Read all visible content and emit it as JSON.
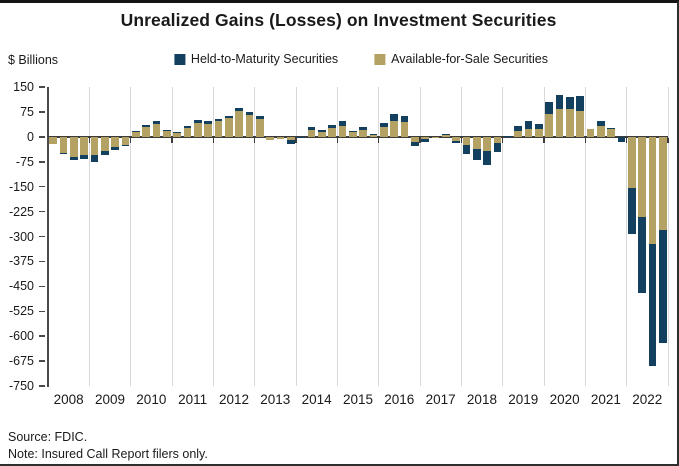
{
  "title": "Unrealized Gains (Losses) on Investment Securities",
  "ylabel": "$ Billions",
  "legend": [
    {
      "label": "Held-to-Maturity Securities",
      "color": "#14405f"
    },
    {
      "label": "Available-for-Sale Securities",
      "color": "#b3a264"
    }
  ],
  "source_line": "Source: FDIC.",
  "note_line": "Note: Insured Call Report filers only.",
  "chart_data": {
    "type": "bar",
    "stacked": true,
    "title": "Unrealized Gains (Losses) on Investment Securities",
    "ylabel": "$ Billions",
    "ylim": [
      -750,
      150
    ],
    "ytick_step": 75,
    "ytick_labels": [
      "150",
      "75",
      "0",
      "-75",
      "-150",
      "-225",
      "-300",
      "-375",
      "-450",
      "-525",
      "-600",
      "-675",
      "-750"
    ],
    "grid": "vertical-year-boundaries",
    "legend_position": "top-center",
    "year_labels": [
      "2008",
      "2009",
      "2010",
      "2011",
      "2012",
      "2013",
      "2014",
      "2015",
      "2016",
      "2017",
      "2018",
      "2019",
      "2020",
      "2021",
      "2022"
    ],
    "categories": [
      "2008 Q1",
      "2008 Q2",
      "2008 Q3",
      "2008 Q4",
      "2009 Q1",
      "2009 Q2",
      "2009 Q3",
      "2009 Q4",
      "2010 Q1",
      "2010 Q2",
      "2010 Q3",
      "2010 Q4",
      "2011 Q1",
      "2011 Q2",
      "2011 Q3",
      "2011 Q4",
      "2012 Q1",
      "2012 Q2",
      "2012 Q3",
      "2012 Q4",
      "2013 Q1",
      "2013 Q2",
      "2013 Q3",
      "2013 Q4",
      "2014 Q1",
      "2014 Q2",
      "2014 Q3",
      "2014 Q4",
      "2015 Q1",
      "2015 Q2",
      "2015 Q3",
      "2015 Q4",
      "2016 Q1",
      "2016 Q2",
      "2016 Q3",
      "2016 Q4",
      "2017 Q1",
      "2017 Q2",
      "2017 Q3",
      "2017 Q4",
      "2018 Q1",
      "2018 Q2",
      "2018 Q3",
      "2018 Q4",
      "2019 Q1",
      "2019 Q2",
      "2019 Q3",
      "2019 Q4",
      "2020 Q1",
      "2020 Q2",
      "2020 Q3",
      "2020 Q4",
      "2021 Q1",
      "2021 Q2",
      "2021 Q3",
      "2021 Q4",
      "2022 Q1",
      "2022 Q2",
      "2022 Q3",
      "2022 Q4"
    ],
    "stack_order": [
      "Available-for-Sale Securities",
      "Held-to-Maturity Securities"
    ],
    "series": [
      {
        "name": "Held-to-Maturity Securities",
        "color": "#14405f",
        "values": [
          0,
          -2,
          -9,
          -12,
          -21,
          -12,
          -10,
          -3,
          2,
          4,
          10,
          3,
          2,
          5,
          8,
          7,
          6,
          7,
          10,
          9,
          8,
          0,
          0,
          -12,
          -3,
          7,
          5,
          10,
          15,
          5,
          10,
          3,
          12,
          22,
          19,
          -11,
          -9,
          0,
          2,
          -6,
          -26,
          -33,
          -40,
          -27,
          1,
          14,
          23,
          14,
          34,
          43,
          37,
          45,
          0,
          15,
          2,
          -13,
          -140,
          -228,
          -368,
          -341
        ]
      },
      {
        "name": "Available-for-Sale Securities",
        "color": "#b3a264",
        "values": [
          -23,
          -48,
          -62,
          -54,
          -54,
          -42,
          -30,
          -25,
          16,
          31,
          38,
          19,
          13,
          28,
          42,
          40,
          48,
          56,
          78,
          66,
          55,
          -10,
          -8,
          -9,
          0,
          22,
          16,
          27,
          32,
          14,
          21,
          7,
          31,
          48,
          44,
          -17,
          -8,
          -4,
          6,
          -12,
          -26,
          -36,
          -44,
          -19,
          2,
          18,
          25,
          25,
          70,
          83,
          84,
          77,
          24,
          33,
          24,
          -2,
          -153,
          -242,
          -322,
          -280
        ]
      }
    ]
  }
}
